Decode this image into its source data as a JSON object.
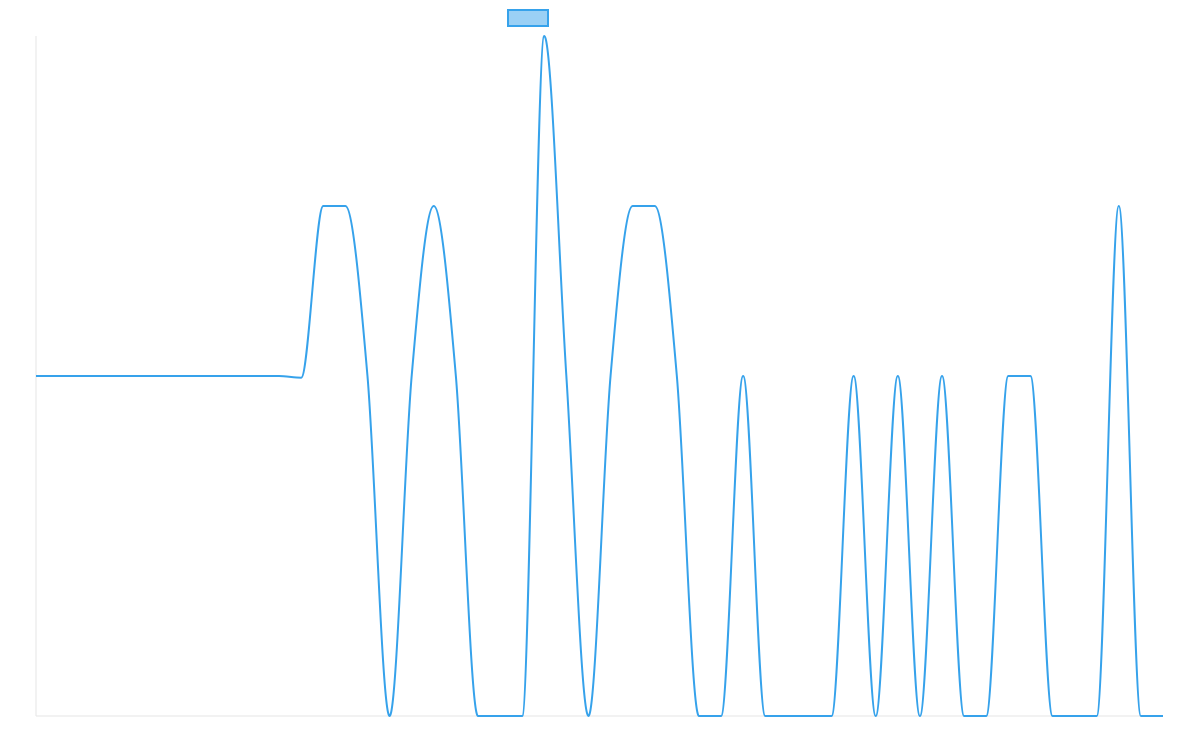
{
  "chart_data": {
    "type": "line",
    "title": "",
    "xlabel": "",
    "ylabel": "",
    "legend": {
      "placement": "top-center",
      "entries": [
        {
          "label": "",
          "color": "#36a2eb",
          "fill": "#9ad0f5"
        }
      ]
    },
    "grid": false,
    "xlim": [
      0,
      51
    ],
    "ylim": [
      -2,
      2
    ],
    "x": [
      0,
      1,
      2,
      3,
      4,
      5,
      6,
      7,
      8,
      9,
      10,
      11,
      12,
      13,
      14,
      15,
      16,
      17,
      18,
      19,
      20,
      21,
      22,
      23,
      24,
      25,
      26,
      27,
      28,
      29,
      30,
      31,
      32,
      33,
      34,
      35,
      36,
      37,
      38,
      39,
      40,
      41,
      42,
      43,
      44,
      45,
      46,
      47,
      48,
      49,
      50,
      51
    ],
    "series": [
      {
        "name": "",
        "color": "#36a2eb",
        "values": [
          0,
          0,
          0,
          0,
          0,
          0,
          0,
          0,
          0,
          0,
          0,
          0,
          -0.01,
          1,
          1,
          0,
          -2,
          0,
          1,
          0,
          -2,
          -2,
          -2,
          2,
          0,
          -2,
          0,
          1,
          1,
          0,
          -2,
          -2,
          0,
          -2,
          -2,
          -2,
          -2,
          0,
          -2,
          0,
          -2,
          0,
          -2,
          -2,
          0,
          0,
          -2,
          -2,
          -2,
          1,
          -2,
          -2
        ]
      }
    ],
    "x_axis": {
      "visible_ticks": false
    },
    "y_axis": {
      "visible_ticks": false
    }
  }
}
